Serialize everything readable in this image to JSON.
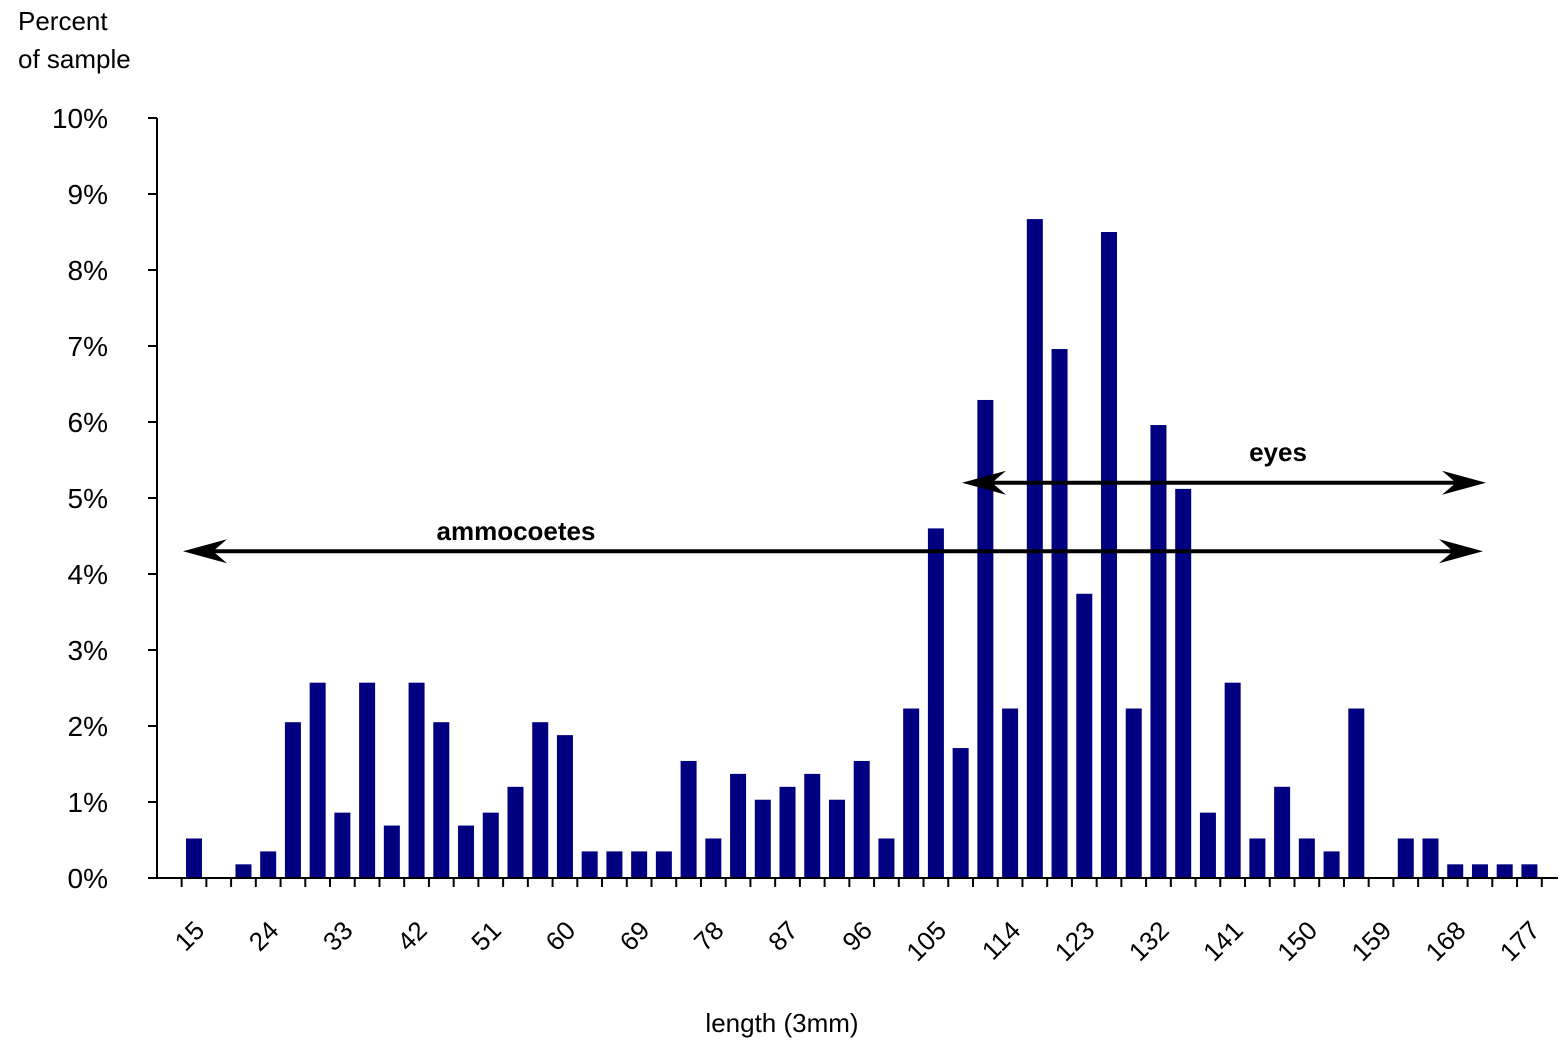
{
  "chart_data": {
    "type": "bar",
    "ylabel_lines": [
      "Percent",
      "of sample"
    ],
    "xlabel": "length (3mm)",
    "ylim": [
      0,
      10
    ],
    "y_ticks": [
      "0%",
      "1%",
      "2%",
      "3%",
      "4%",
      "5%",
      "6%",
      "7%",
      "8%",
      "9%",
      "10%"
    ],
    "x_ticklabels": [
      "15",
      "24",
      "33",
      "42",
      "51",
      "60",
      "69",
      "78",
      "87",
      "96",
      "105",
      "114",
      "123",
      "132",
      "141",
      "150",
      "159",
      "168",
      "177"
    ],
    "categories": [
      15,
      18,
      21,
      24,
      27,
      30,
      33,
      36,
      39,
      42,
      45,
      48,
      51,
      54,
      57,
      60,
      63,
      66,
      69,
      72,
      75,
      78,
      81,
      84,
      87,
      90,
      93,
      96,
      99,
      102,
      105,
      108,
      111,
      114,
      117,
      120,
      123,
      126,
      129,
      132,
      135,
      138,
      141,
      144,
      147,
      150,
      153,
      156,
      159,
      162,
      165,
      168,
      171,
      174,
      177
    ],
    "values": [
      0.52,
      0,
      0.18,
      0.35,
      2.05,
      2.57,
      0.86,
      2.57,
      0.69,
      2.57,
      2.05,
      0.69,
      0.86,
      1.2,
      2.05,
      1.88,
      0.35,
      0.35,
      0.35,
      0.35,
      1.54,
      0.52,
      1.37,
      1.03,
      1.2,
      1.37,
      1.03,
      1.54,
      0.52,
      2.23,
      4.6,
      1.71,
      6.29,
      2.23,
      8.67,
      6.96,
      3.74,
      8.5,
      2.23,
      5.96,
      5.12,
      0.86,
      2.57,
      0.52,
      1.2,
      0.52,
      0.35,
      2.23,
      0,
      0.52,
      0.52,
      0.18,
      0.18,
      0.18,
      0.18
    ],
    "bar_color": "#000080",
    "annotations": [
      {
        "label": "ammocoetes",
        "x_start": 15,
        "x_end": 177,
        "y": 4.3
      },
      {
        "label": "eyes",
        "x_start": 108,
        "x_end": 177,
        "y": 5.2
      }
    ]
  }
}
